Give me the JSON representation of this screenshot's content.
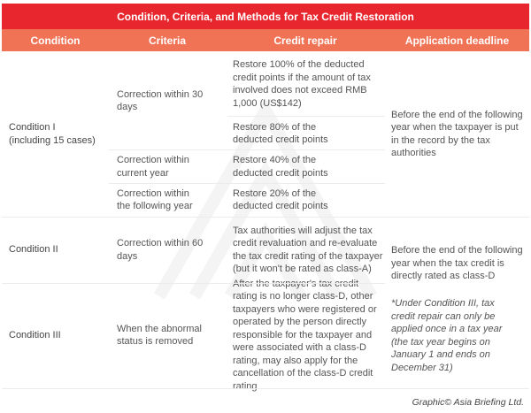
{
  "title": "Condition, Criteria, and Methods for Tax Credit Restoration",
  "columns": [
    "Condition",
    "Criteria",
    "Credit repair",
    "Application deadline"
  ],
  "rows": {
    "condition_1": {
      "condition": "Condition I\n(including 15 cases)",
      "criteria": [
        "Correction within 30 days",
        "Correction within current year",
        "Correction within the following year"
      ],
      "repairs": [
        "Restore 100% of the deducted credit points if the amount of tax involved does not exceed RMB 1,000 (US$142)",
        "Restore 80% of the deducted credit points",
        "Restore 40% of the deducted credit points",
        "Restore 20% of the deducted credit points"
      ],
      "deadline": "Before the end of the following year when the taxpayer is put in the record by the tax authorities"
    },
    "condition_2": {
      "condition": "Condition II",
      "criteria": "Correction within 60 days",
      "repair": "Tax authorities will adjust the tax credit revaluation and re-evaluate the tax credit rating of the taxpayer (but it won't be rated as class-A)"
    },
    "condition_3": {
      "condition": "Condition III",
      "criteria": "When the abnormal status is removed",
      "repair": "After the taxpayer's tax credit rating is no longer class-D, other taxpayers who were registered or operated by the person directly responsible for the taxpayer and were associated with a class-D rating, may also apply for the cancellation of the class-D credit rating"
    },
    "deadline_2_3": "Before the end of the following year when the tax credit is directly rated as class-D",
    "note_2_3": "*Under Condition III, tax credit repair can only be applied once in a tax year (the tax year begins on January 1 and ends on December 31)"
  },
  "credit": "Graphic© Asia Briefing Ltd.",
  "colors": {
    "title_bg": "#e8262d",
    "header_bg": "#f07356"
  }
}
